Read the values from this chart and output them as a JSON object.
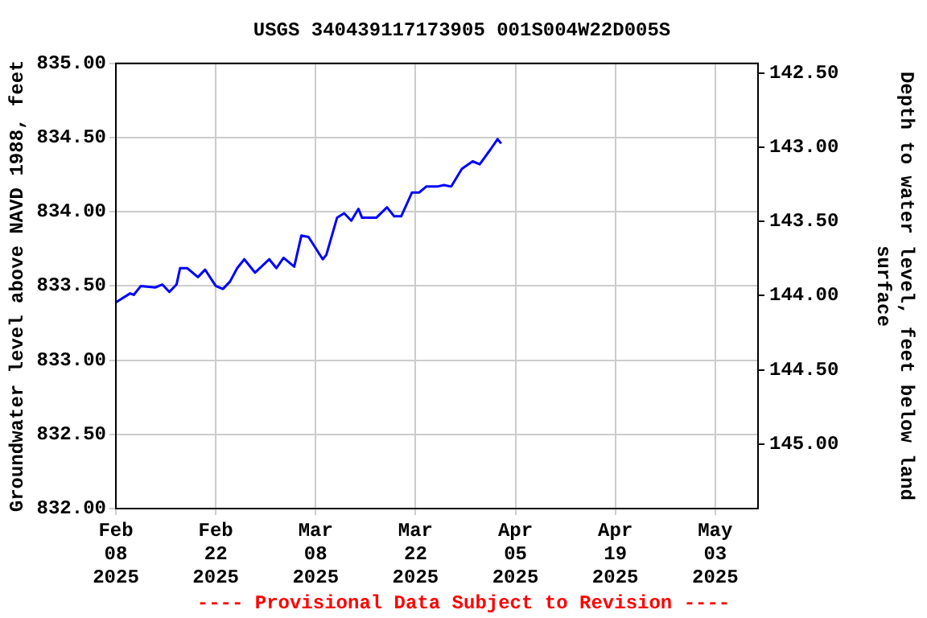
{
  "chart_data": {
    "type": "line",
    "title": "USGS 340439117173905 001S004W22D005S",
    "ylabel": "Groundwater level above NAVD 1988, feet",
    "y2label": "Depth to water level, feet below land\nsurface",
    "annotations": [
      "---- Provisional Data Subject to Revision ----"
    ],
    "x": [
      "2025-02-08",
      "2025-02-10",
      "2025-02-10T12:00",
      "2025-02-11T12:00",
      "2025-02-13T12:00",
      "2025-02-14T12:00",
      "2025-02-15T12:00",
      "2025-02-16T12:00",
      "2025-02-17",
      "2025-02-18",
      "2025-02-19T12:00",
      "2025-02-20T12:00",
      "2025-02-22",
      "2025-02-23",
      "2025-02-24",
      "2025-02-25",
      "2025-02-26",
      "2025-02-27T12:00",
      "2025-03-01T12:00",
      "2025-03-02T12:00",
      "2025-03-03T12:00",
      "2025-03-05",
      "2025-03-06",
      "2025-03-07",
      "2025-03-09",
      "2025-03-09T12:00",
      "2025-03-11",
      "2025-03-12",
      "2025-03-13",
      "2025-03-14",
      "2025-03-14T12:00",
      "2025-03-16T12:00",
      "2025-03-18",
      "2025-03-19",
      "2025-03-20",
      "2025-03-21T12:00",
      "2025-03-22T12:00",
      "2025-03-23T12:00",
      "2025-03-25",
      "2025-03-26",
      "2025-03-27",
      "2025-03-28T12:00",
      "2025-03-30",
      "2025-03-31",
      "2025-04-01T12:00",
      "2025-04-02T12:00",
      "2025-04-03"
    ],
    "series": [
      {
        "color": "#0000ff",
        "values": [
          833.39,
          833.45,
          833.44,
          833.5,
          833.49,
          833.51,
          833.46,
          833.51,
          833.62,
          833.62,
          833.56,
          833.61,
          833.5,
          833.48,
          833.53,
          833.62,
          833.68,
          833.59,
          833.68,
          833.62,
          833.69,
          833.63,
          833.84,
          833.83,
          833.68,
          833.71,
          833.96,
          833.99,
          833.94,
          834.02,
          833.96,
          833.96,
          834.03,
          833.97,
          833.97,
          834.13,
          834.13,
          834.17,
          834.17,
          834.18,
          834.17,
          834.29,
          834.34,
          834.32,
          834.42,
          834.49,
          834.46
        ]
      }
    ],
    "xlim": [
      "2025-02-08",
      "2025-05-09"
    ],
    "xticks": [
      {
        "value": "2025-02-08",
        "label": "Feb 08 2025"
      },
      {
        "value": "2025-02-22",
        "label": "Feb 22 2025"
      },
      {
        "value": "2025-03-08",
        "label": "Mar 08 2025"
      },
      {
        "value": "2025-03-22",
        "label": "Mar 22 2025"
      },
      {
        "value": "2025-04-05",
        "label": "Apr 05 2025"
      },
      {
        "value": "2025-04-19",
        "label": "Apr 19 2025"
      },
      {
        "value": "2025-05-03",
        "label": "May 03 2025"
      }
    ],
    "ylim": [
      832,
      835
    ],
    "yticks": [
      {
        "value": 832,
        "label": "832.00"
      },
      {
        "value": 832.5,
        "label": "832.50"
      },
      {
        "value": 833,
        "label": "833.00"
      },
      {
        "value": 833.5,
        "label": "833.50"
      },
      {
        "value": 834,
        "label": "834.00"
      },
      {
        "value": 834.5,
        "label": "834.50"
      },
      {
        "value": 835,
        "label": "835.00"
      }
    ],
    "y2lim": [
      145.435,
      142.435
    ],
    "y2ticks": [
      {
        "value": 142.5,
        "label": "142.50"
      },
      {
        "value": 143,
        "label": "143.00"
      },
      {
        "value": 143.5,
        "label": "143.50"
      },
      {
        "value": 144,
        "label": "144.00"
      },
      {
        "value": 144.5,
        "label": "144.50"
      },
      {
        "value": 145,
        "label": "145.00"
      }
    ],
    "grid": true,
    "legend": false,
    "marker": "none",
    "line_style": "solid"
  }
}
